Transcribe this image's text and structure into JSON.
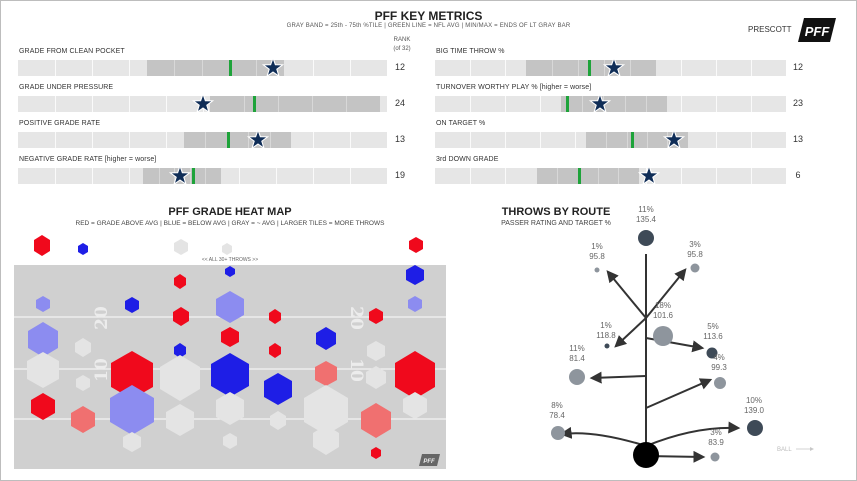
{
  "header": {
    "title": "PFF KEY METRICS",
    "subtitle": "GRAY BAND = 25th - 75th %TILE | GREEN LINE = NFL AVG | MIN/MAX = ENDS OF LT GRAY BAR",
    "player": "PRESCOTT",
    "logo_text": "PFF",
    "rank_header_1": "RANK",
    "rank_header_2": "(of 32)"
  },
  "colors": {
    "band": "#c4c4c4",
    "track": "#e6e6e6",
    "avg_line": "#1ea33a",
    "star": "#0f2d57",
    "hex_red": "#f0091c",
    "hex_blue": "#1e1ee6",
    "route_dot": "#8e959d",
    "route_dot_dark": "#3e4a57"
  },
  "metrics": [
    {
      "label": "GRADE FROM CLEAN POCKET",
      "rank": "12",
      "band": [
        0.35,
        0.72
      ],
      "avg": 0.575,
      "value": 0.69
    },
    {
      "label": "BIG TIME THROW %",
      "rank": "12",
      "band": [
        0.26,
        0.63
      ],
      "avg": 0.44,
      "value": 0.51
    },
    {
      "label": "GRADE UNDER PRESSURE",
      "rank": "24",
      "band": [
        0.52,
        0.98
      ],
      "avg": 0.64,
      "value": 0.5
    },
    {
      "label": "TURNOVER WORTHY PLAY % [higher = worse]",
      "rank": "23",
      "band": [
        0.36,
        0.66
      ],
      "avg": 0.375,
      "value": 0.47
    },
    {
      "label": "POSITIVE GRADE RATE",
      "rank": "13",
      "band": [
        0.45,
        0.74
      ],
      "avg": 0.57,
      "value": 0.65
    },
    {
      "label": "ON TARGET %",
      "rank": "13",
      "band": [
        0.43,
        0.72
      ],
      "avg": 0.56,
      "value": 0.68
    },
    {
      "label": "NEGATIVE GRADE RATE [higher = worse]",
      "rank": "19",
      "band": [
        0.34,
        0.55
      ],
      "avg": 0.475,
      "value": 0.44
    },
    {
      "label": "3rd DOWN GRADE",
      "rank": "6",
      "band": [
        0.29,
        0.58
      ],
      "avg": 0.41,
      "value": 0.61
    }
  ],
  "heatmap": {
    "title": "PFF GRADE HEAT MAP",
    "subtitle": "RED = GRADE ABOVE AVG | BLUE = BELOW AVG | GRAY = ~ AVG | LARGER TILES = MORE THROWS",
    "note": "<< ALL 30+ THROWS >>",
    "yard_marks": [
      "20",
      "10",
      "10",
      "20"
    ]
  },
  "routes": {
    "title": "THROWS BY ROUTE",
    "subtitle": "PASSER RATING AND TARGET %",
    "ball_label": "BALL",
    "items": [
      {
        "pct": "11%",
        "rating": "135.4"
      },
      {
        "pct": "1%",
        "rating": "95.8"
      },
      {
        "pct": "3%",
        "rating": "95.8"
      },
      {
        "pct": "18%",
        "rating": "101.6"
      },
      {
        "pct": "1%",
        "rating": "118.8"
      },
      {
        "pct": "5%",
        "rating": "113.6"
      },
      {
        "pct": "11%",
        "rating": "81.4"
      },
      {
        "pct": "4%",
        "rating": "99.3"
      },
      {
        "pct": "10%",
        "rating": "139.0"
      },
      {
        "pct": "8%",
        "rating": "78.4"
      },
      {
        "pct": "3%",
        "rating": "83.9"
      }
    ]
  }
}
